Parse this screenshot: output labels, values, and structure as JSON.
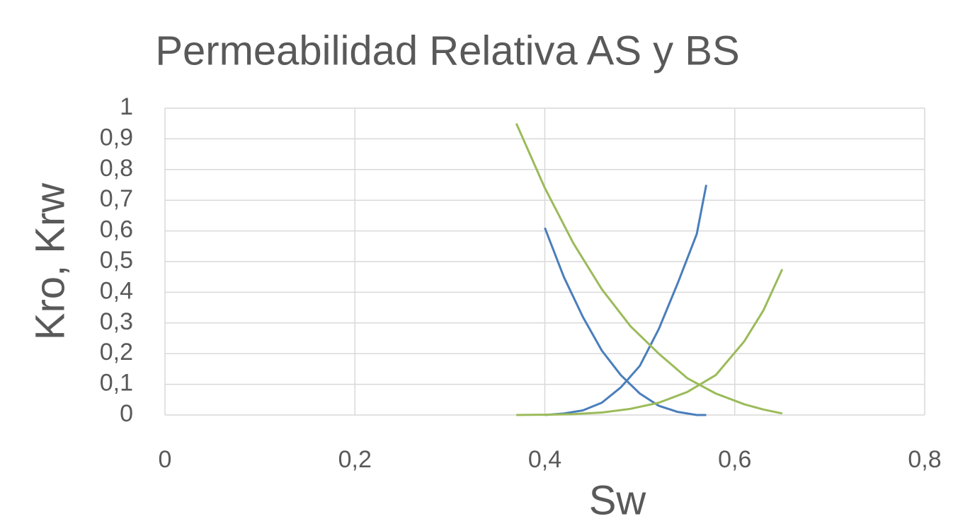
{
  "chart_data": {
    "type": "line",
    "title": "Permeabilidad Relativa AS y BS",
    "xlabel": "Sw",
    "ylabel": "Kro, Krw",
    "xlim": [
      0,
      0.8
    ],
    "ylim": [
      0,
      1
    ],
    "xticks": [
      0,
      {
        "value": 0.2,
        "label": "0,2"
      },
      {
        "value": 0.4,
        "label": "0,4"
      },
      {
        "value": 0.6,
        "label": "0,6"
      },
      {
        "value": 0.8,
        "label": "0,8"
      }
    ],
    "yticks": [
      0,
      {
        "value": 0.1,
        "label": "0,1"
      },
      {
        "value": 0.2,
        "label": "0,2"
      },
      {
        "value": 0.3,
        "label": "0,3"
      },
      {
        "value": 0.4,
        "label": "0,4"
      },
      {
        "value": 0.5,
        "label": "0,5"
      },
      {
        "value": 0.6,
        "label": "0,6"
      },
      {
        "value": 0.7,
        "label": "0,7"
      },
      {
        "value": 0.8,
        "label": "0,8"
      },
      {
        "value": 0.9,
        "label": "0,9"
      },
      1
    ],
    "grid": true,
    "series": [
      {
        "color": "#4a7ebb",
        "x": [
          0.4,
          0.42,
          0.44,
          0.46,
          0.48,
          0.5,
          0.52,
          0.54,
          0.56,
          0.57
        ],
        "values": [
          0.61,
          0.45,
          0.32,
          0.21,
          0.13,
          0.07,
          0.03,
          0.01,
          0,
          0
        ]
      },
      {
        "color": "#4a7ebb",
        "x": [
          0.4,
          0.42,
          0.44,
          0.46,
          0.48,
          0.5,
          0.52,
          0.54,
          0.56,
          0.57
        ],
        "values": [
          0,
          0.005,
          0.015,
          0.04,
          0.09,
          0.16,
          0.28,
          0.43,
          0.59,
          0.75
        ]
      },
      {
        "color": "#9bbb59",
        "x": [
          0.37,
          0.4,
          0.43,
          0.46,
          0.49,
          0.52,
          0.55,
          0.58,
          0.61,
          0.63,
          0.65
        ],
        "values": [
          0.95,
          0.74,
          0.56,
          0.41,
          0.29,
          0.2,
          0.12,
          0.07,
          0.035,
          0.018,
          0.005
        ]
      },
      {
        "color": "#9bbb59",
        "x": [
          0.37,
          0.4,
          0.43,
          0.46,
          0.49,
          0.52,
          0.55,
          0.58,
          0.61,
          0.63,
          0.65
        ],
        "values": [
          0,
          0.001,
          0.003,
          0.008,
          0.02,
          0.04,
          0.075,
          0.13,
          0.24,
          0.34,
          0.475
        ]
      }
    ]
  }
}
